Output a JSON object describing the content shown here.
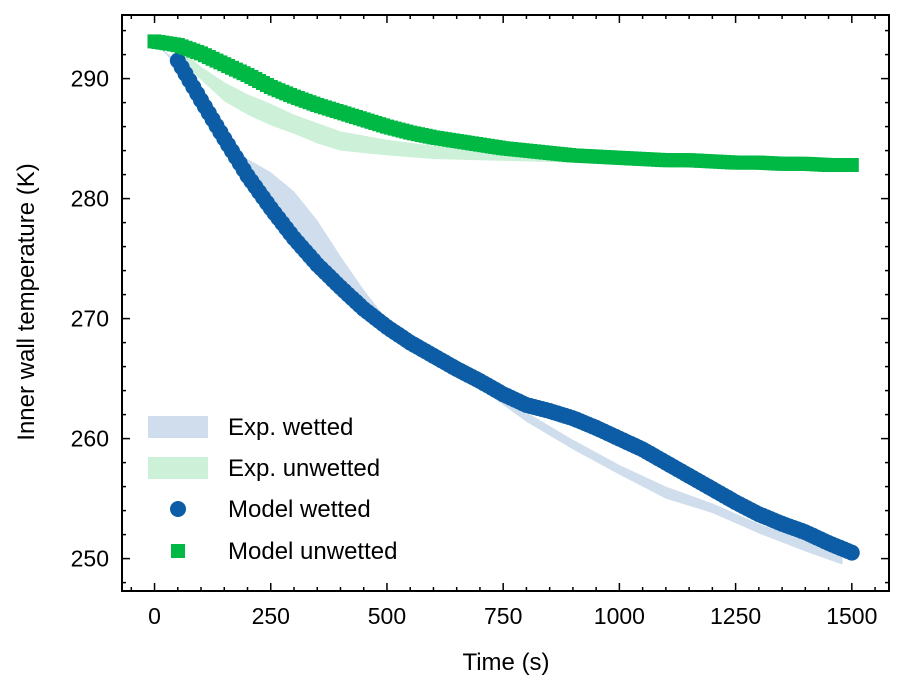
{
  "chart_data": {
    "type": "line",
    "xlabel": "Time (s)",
    "ylabel": "Inner wall temperature (K)",
    "xlim": [
      -70,
      1580
    ],
    "ylim": [
      247.3,
      295.3
    ],
    "xticks": [
      0,
      250,
      500,
      750,
      1000,
      1250,
      1500
    ],
    "xtick_labels": [
      "0",
      "250",
      "500",
      "750",
      "1000",
      "1250",
      "1500"
    ],
    "yticks": [
      250,
      260,
      270,
      280,
      290
    ],
    "ytick_labels": [
      "250",
      "260",
      "270",
      "280",
      "290"
    ],
    "x_minor_step": 50,
    "y_minor_step": 2,
    "legend_position": "lower-left",
    "series": [
      {
        "name": "Exp. wetted",
        "kind": "band",
        "color": "#cfdded",
        "x": [
          0,
          50,
          100,
          150,
          200,
          250,
          300,
          350,
          400,
          450,
          500,
          600,
          700,
          750,
          800,
          900,
          1000,
          1100,
          1200,
          1300,
          1400,
          1480
        ],
        "lower": [
          293,
          291.0,
          288.0,
          284.6,
          281.4,
          278.9,
          277.4,
          275.0,
          272.7,
          270.8,
          269.2,
          266.7,
          264.2,
          262.8,
          261.4,
          259.1,
          257.0,
          255.0,
          253.8,
          252.1,
          250.6,
          249.5
        ],
        "upper": [
          293,
          291.4,
          288.7,
          285.6,
          283.3,
          282.2,
          280.6,
          278.2,
          275.2,
          272.4,
          269.9,
          267.3,
          264.9,
          263.6,
          262.2,
          259.9,
          257.8,
          256.0,
          254.6,
          252.9,
          251.5,
          250.5
        ]
      },
      {
        "name": "Exp. unwetted",
        "kind": "band",
        "color": "#cdf0d9",
        "x": [
          0,
          50,
          100,
          150,
          200,
          250,
          300,
          350,
          400,
          500,
          600,
          700,
          800,
          900,
          1000,
          1100,
          1200,
          1300,
          1400,
          1500
        ],
        "lower": [
          293,
          291.8,
          289.9,
          288.1,
          287.0,
          286.1,
          285.4,
          284.6,
          284.0,
          283.6,
          283.3,
          283.2,
          283.1,
          283.0,
          283.0,
          282.9,
          282.9,
          282.8,
          282.7,
          282.6
        ],
        "upper": [
          293,
          292.6,
          291.0,
          289.7,
          288.7,
          287.9,
          287.0,
          286.3,
          285.6,
          284.9,
          284.4,
          284.0,
          283.7,
          283.5,
          283.4,
          283.3,
          283.1,
          283.0,
          282.9,
          282.8
        ]
      },
      {
        "name": "Model wetted",
        "kind": "markers",
        "marker": "circle",
        "color": "#0c5da5",
        "x": [
          50,
          100,
          150,
          200,
          250,
          300,
          350,
          400,
          450,
          500,
          550,
          600,
          650,
          700,
          750,
          800,
          850,
          900,
          950,
          1000,
          1050,
          1100,
          1150,
          1200,
          1250,
          1300,
          1350,
          1400,
          1450,
          1500
        ],
        "y": [
          291.5,
          288.2,
          285.0,
          281.9,
          279.2,
          276.7,
          274.5,
          272.6,
          270.8,
          269.3,
          268.0,
          266.9,
          265.8,
          264.8,
          263.7,
          262.8,
          262.3,
          261.7,
          260.9,
          260.0,
          259.1,
          258.0,
          256.9,
          255.8,
          254.7,
          253.7,
          252.9,
          252.2,
          251.3,
          250.5
        ]
      },
      {
        "name": "Model unwetted",
        "kind": "markers",
        "marker": "square",
        "color": "#00b945",
        "x": [
          0,
          50,
          100,
          150,
          200,
          250,
          300,
          350,
          400,
          450,
          500,
          550,
          600,
          650,
          700,
          750,
          800,
          850,
          900,
          950,
          1000,
          1050,
          1100,
          1150,
          1200,
          1250,
          1300,
          1350,
          1400,
          1450,
          1500
        ],
        "y": [
          293.1,
          292.8,
          292.1,
          291.2,
          290.3,
          289.3,
          288.5,
          287.8,
          287.2,
          286.6,
          286.0,
          285.5,
          285.1,
          284.8,
          284.5,
          284.2,
          284.0,
          283.8,
          283.6,
          283.5,
          283.4,
          283.3,
          283.2,
          283.2,
          283.1,
          283.0,
          283.0,
          282.9,
          282.9,
          282.8,
          282.8
        ]
      }
    ]
  }
}
